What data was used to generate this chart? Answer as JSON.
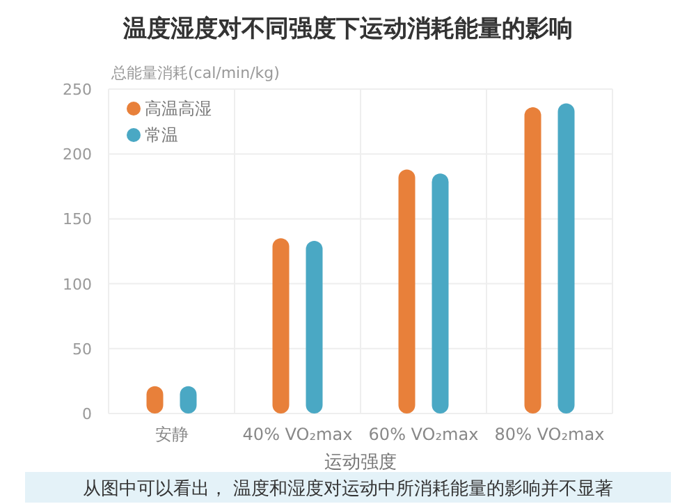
{
  "chart_data": {
    "type": "bar",
    "title": "温度湿度对不同强度下运动消耗能量的影响",
    "ylabel": "总能量消耗(cal/min/kg)",
    "xlabel": "运动强度",
    "categories": [
      "安静",
      "40% VO₂max",
      "60% VO₂max",
      "80% VO₂max"
    ],
    "series": [
      {
        "name": "高温高湿",
        "color": "#e8803a",
        "values": [
          21,
          135,
          188,
          236
        ]
      },
      {
        "name": "常温",
        "color": "#4aa8c4",
        "values": [
          21,
          133,
          185,
          239
        ]
      }
    ],
    "ylim": [
      0,
      250
    ],
    "yticks": [
      0,
      50,
      100,
      150,
      200,
      250
    ],
    "grid": true,
    "legend": "top left",
    "annotations": [
      "从图中可以看出， 温度和湿度对运动中所消耗能量的影响并不显著"
    ]
  }
}
